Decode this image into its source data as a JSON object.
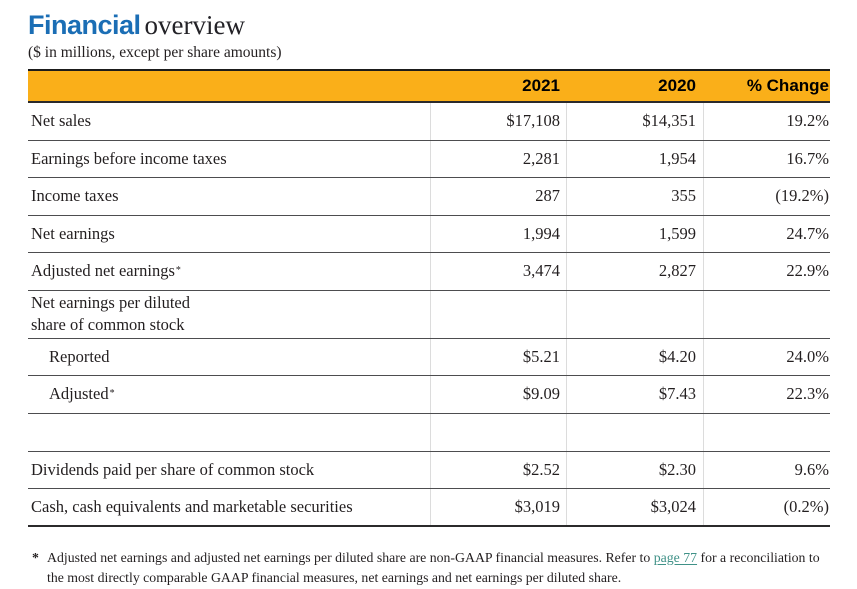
{
  "title": {
    "emphasis": "Financial",
    "rest": "overview"
  },
  "subtitle": "($ in millions, except per share amounts)",
  "table": {
    "columns": [
      "2021",
      "2020",
      "% Change"
    ],
    "rows": [
      {
        "type": "data",
        "label": "Net sales",
        "values": [
          "$17,108",
          "$14,351",
          "19.2%"
        ]
      },
      {
        "type": "data",
        "label": "Earnings before income taxes",
        "values": [
          "2,281",
          "1,954",
          "16.7%"
        ]
      },
      {
        "type": "data",
        "label": "Income taxes",
        "values": [
          "287",
          "355",
          "(19.2%)"
        ]
      },
      {
        "type": "data",
        "label": "Net earnings",
        "values": [
          "1,994",
          "1,599",
          "24.7%"
        ]
      },
      {
        "type": "data",
        "label": "Adjusted net earnings",
        "sup": "*",
        "values": [
          "3,474",
          "2,827",
          "22.9%"
        ]
      },
      {
        "type": "section",
        "lines": [
          "Net earnings per diluted",
          "share of common stock"
        ]
      },
      {
        "type": "data",
        "indent": true,
        "label": "Reported",
        "values": [
          "$5.21",
          "$4.20",
          "24.0%"
        ]
      },
      {
        "type": "data",
        "indent": true,
        "label": "Adjusted",
        "sup": "*",
        "values": [
          "$9.09",
          "$7.43",
          "22.3%"
        ]
      },
      {
        "type": "spacer"
      },
      {
        "type": "data",
        "label": "Dividends paid per share of common stock",
        "values": [
          "$2.52",
          "$2.30",
          "9.6%"
        ]
      },
      {
        "type": "data",
        "last": true,
        "label": "Cash, cash equivalents and marketable securities",
        "values": [
          "$3,019",
          "$3,024",
          "(0.2%)"
        ]
      }
    ]
  },
  "footnote": {
    "marker": "*",
    "pre": "Adjusted net earnings and adjusted net earnings per diluted share are non-GAAP financial measures. Refer to ",
    "link_text": "page 77",
    "post": " for a reconciliation to the most directly comparable GAAP financial measures, net earnings and net earnings per diluted share."
  },
  "colors": {
    "header_background": "#FAAF19",
    "title_blue": "#1B6EB5",
    "body_text": "#231F20",
    "link_teal": "#3F9187"
  }
}
